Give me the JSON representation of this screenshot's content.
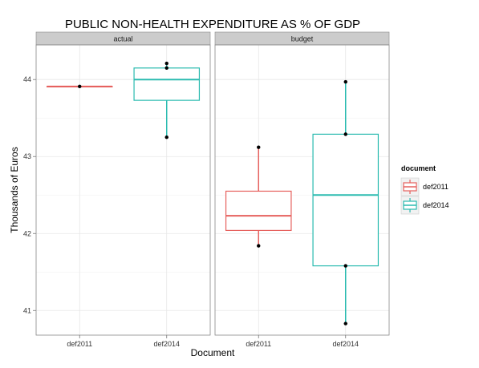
{
  "chart_data": {
    "type": "boxplot",
    "title": "PUBLIC NON-HEALTH EXPENDITURE AS % OF GDP",
    "xlabel": "Document",
    "ylabel": "Thousands of Euros",
    "ylim": [
      40.68,
      44.45
    ],
    "yticks": [
      41,
      42,
      43,
      44
    ],
    "grid": true,
    "legend": {
      "title": "document",
      "position": "right",
      "entries": [
        {
          "name": "def2011",
          "color": "#e6615e"
        },
        {
          "name": "def2014",
          "color": "#2bbbb0"
        }
      ]
    },
    "panels": [
      {
        "label": "actual",
        "categories": [
          "def2011",
          "def2014"
        ],
        "boxes": [
          {
            "category": "def2011",
            "series": "def2011",
            "min": 43.91,
            "q1": 43.91,
            "median": 43.91,
            "q3": 43.91,
            "max": 43.91,
            "points": [
              43.91
            ]
          },
          {
            "category": "def2014",
            "series": "def2014",
            "min": 43.25,
            "q1": 43.73,
            "median": 44.0,
            "q3": 44.15,
            "max": 44.21,
            "points": [
              43.25,
              44.15,
              44.21
            ]
          }
        ]
      },
      {
        "label": "budget",
        "categories": [
          "def2011",
          "def2014"
        ],
        "boxes": [
          {
            "category": "def2011",
            "series": "def2011",
            "min": 41.84,
            "q1": 42.04,
            "median": 42.23,
            "q3": 42.55,
            "max": 43.12,
            "points": [
              41.84,
              43.12
            ]
          },
          {
            "category": "def2014",
            "series": "def2014",
            "min": 40.83,
            "q1": 41.58,
            "median": 42.5,
            "q3": 43.29,
            "max": 43.97,
            "points": [
              40.83,
              41.58,
              43.29,
              43.97
            ]
          }
        ]
      }
    ]
  }
}
